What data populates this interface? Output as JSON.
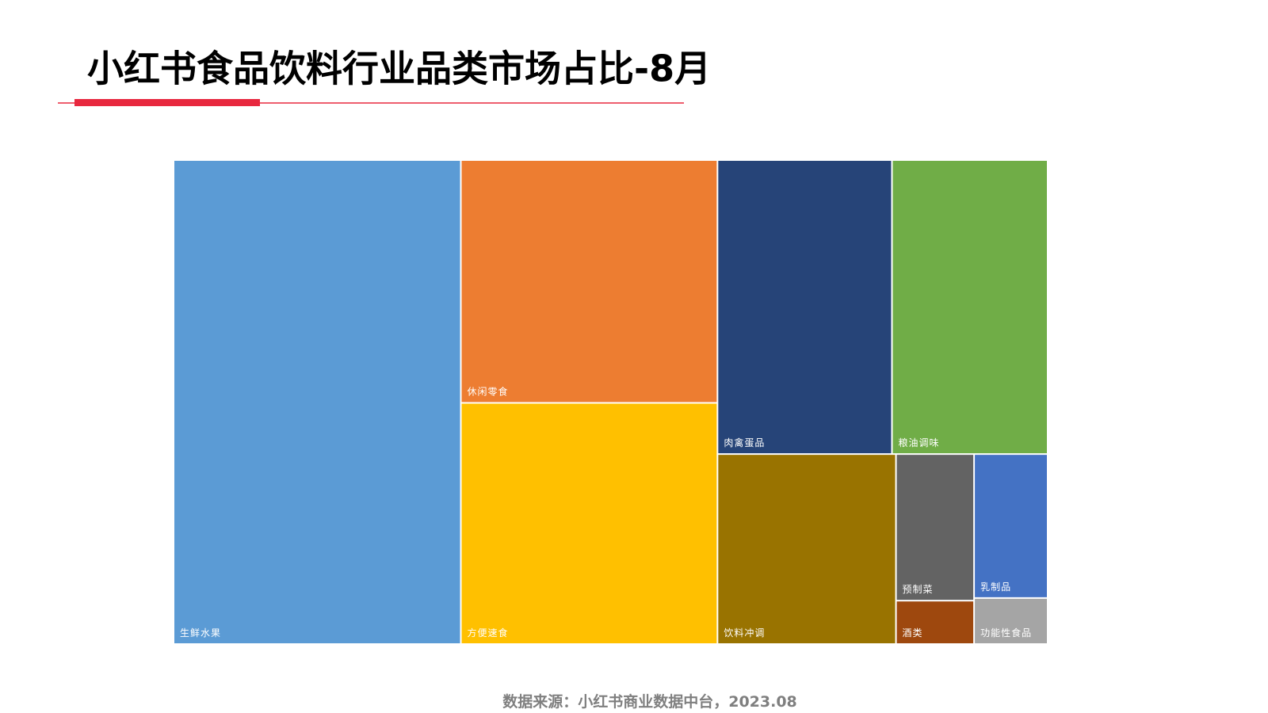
{
  "chart_data": {
    "type": "treemap",
    "title": "小红书食品饮料行业品类市场占比-8月",
    "source": "数据来源：小红书商业数据中台，2023.08",
    "categories": [
      "生鲜水果",
      "休闲零食",
      "方便速食",
      "肉禽蛋品",
      "粮油调味",
      "饮料冲调",
      "预制菜",
      "乳制品",
      "酒类",
      "功能性食品"
    ],
    "values": [
      32.8,
      14.7,
      14.6,
      12.1,
      10.8,
      8.0,
      2.7,
      2.5,
      0.8,
      0.8
    ],
    "colors": [
      "#5b9bd5",
      "#ed7d31",
      "#ffc000",
      "#264478",
      "#70ad47",
      "#997300",
      "#636363",
      "#4472c4",
      "#9e480e",
      "#a5a5a5"
    ]
  }
}
